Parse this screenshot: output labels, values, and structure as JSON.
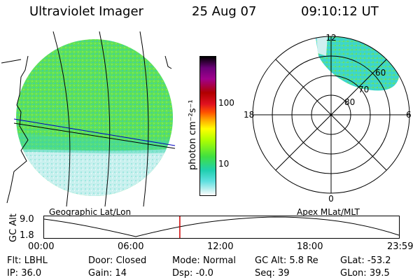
{
  "header": {
    "title": "Ultraviolet Imager",
    "date": "25 Aug 07",
    "time": "09:10:12 UT"
  },
  "geo_panel": {
    "caption": "Geographic Lat/Lon"
  },
  "colorbar": {
    "unit": "photon cm⁻²s⁻¹",
    "ticks": [
      "100",
      "10"
    ],
    "colors": [
      "#000000",
      "#6a0078",
      "#a0008c",
      "#b00000",
      "#e01020",
      "#ff5000",
      "#ffa000",
      "#ffff00",
      "#b0ff00",
      "#40e040",
      "#20d0b0",
      "#60e0e0",
      "#c0f0f0",
      "#ffffff"
    ]
  },
  "polar_panel": {
    "caption": "Apex MLat/MLT",
    "mlt_labels": {
      "top": "12",
      "left": "18",
      "right": "6",
      "bottom": "0"
    },
    "lat_labels": [
      "60",
      "70",
      "80"
    ]
  },
  "timeline": {
    "axis_label": "GC Alt",
    "y_ticks": [
      "9.0",
      "1.8"
    ],
    "x_ticks": [
      "00:00",
      "06:00",
      "12:00",
      "18:00",
      "23:59"
    ],
    "current_time_hours": 9.17
  },
  "status": {
    "row1": [
      {
        "label": "Flt:",
        "value": "LBHL"
      },
      {
        "label": "Door:",
        "value": "Closed"
      },
      {
        "label": "Mode:",
        "value": "Normal"
      },
      {
        "label": "GC Alt:",
        "value": "5.8 Re"
      },
      {
        "label": "GLat:",
        "value": "-53.2"
      }
    ],
    "row2": [
      {
        "label": "IP:",
        "value": "36.0"
      },
      {
        "label": "Gain:",
        "value": "14"
      },
      {
        "label": "Dsp:",
        "value": "-0.0"
      },
      {
        "label": "Seq:",
        "value": "39"
      },
      {
        "label": "GLon:",
        "value": "39.5"
      }
    ]
  },
  "colors": {
    "aurora_cyan": "#40e0c0",
    "aurora_green": "#30d080",
    "aurora_lime": "#60e040",
    "faint": "#d0f0f0",
    "marker_red": "#d00000",
    "track_blue": "#0000c0"
  }
}
